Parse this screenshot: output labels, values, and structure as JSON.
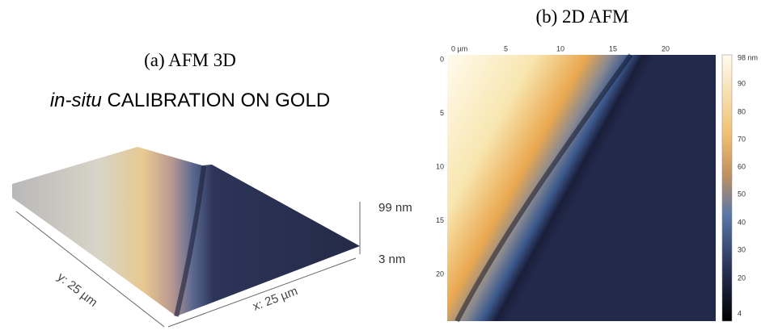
{
  "panel_a": {
    "title": "(a)  AFM 3D",
    "subtitle_italic": "in-situ",
    "subtitle": " CALIBRATION ON GOLD",
    "y_axis_label": "y: 25 µm",
    "x_axis_label": "x: 25 µm",
    "z_max_label": "99 nm",
    "z_min_label": "3 nm"
  },
  "panel_b": {
    "title": "(b) 2D AFM",
    "x_ticks": [
      "0 µm",
      "5",
      "10",
      "15",
      "20"
    ],
    "y_ticks": [
      "0",
      "5",
      "10",
      "15",
      "20"
    ],
    "colorbar_ticks": [
      "98 nm",
      "90",
      "80",
      "70",
      "60",
      "50",
      "40",
      "30",
      "20",
      "4"
    ]
  }
}
